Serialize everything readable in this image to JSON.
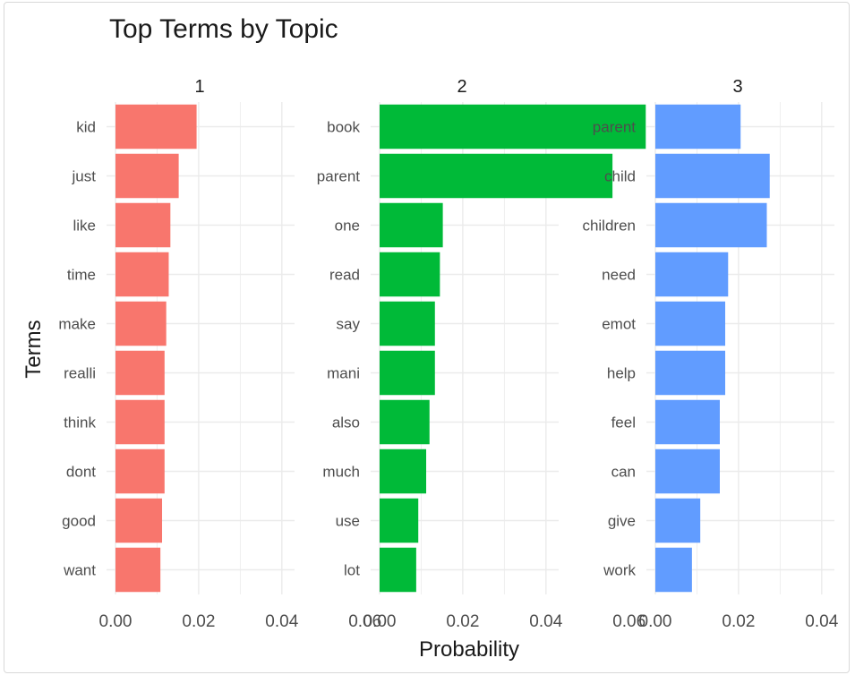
{
  "chart_data": {
    "type": "bar",
    "orientation": "horizontal",
    "title": "Top Terms by Topic",
    "xlabel": "Probability",
    "ylabel": "Terms",
    "xlim": [
      0,
      0.068
    ],
    "xticks": [
      0.0,
      0.02,
      0.04,
      0.06
    ],
    "xtick_labels": [
      "0.00",
      "0.02",
      "0.04",
      "0.06"
    ],
    "grid": true,
    "panels": [
      {
        "name": "1",
        "color": "#F8766D",
        "categories": [
          "kid",
          "just",
          "like",
          "time",
          "make",
          "realli",
          "think",
          "dont",
          "good",
          "want"
        ],
        "values": [
          0.0195,
          0.0152,
          0.0132,
          0.0128,
          0.0122,
          0.0118,
          0.0118,
          0.0118,
          0.0112,
          0.0108
        ]
      },
      {
        "name": "2",
        "color": "#00BA38",
        "categories": [
          "book",
          "parent",
          "one",
          "read",
          "say",
          "mani",
          "also",
          "much",
          "use",
          "lot"
        ],
        "values": [
          0.064,
          0.056,
          0.0152,
          0.0145,
          0.0133,
          0.0133,
          0.012,
          0.0112,
          0.0093,
          0.0088
        ]
      },
      {
        "name": "3",
        "color": "#619CFF",
        "categories": [
          "parent",
          "child",
          "children",
          "need",
          "emot",
          "help",
          "feel",
          "can",
          "give",
          "work"
        ],
        "values": [
          0.0205,
          0.0275,
          0.0268,
          0.0175,
          0.0168,
          0.0168,
          0.0155,
          0.0155,
          0.0108,
          0.0088
        ]
      }
    ]
  }
}
